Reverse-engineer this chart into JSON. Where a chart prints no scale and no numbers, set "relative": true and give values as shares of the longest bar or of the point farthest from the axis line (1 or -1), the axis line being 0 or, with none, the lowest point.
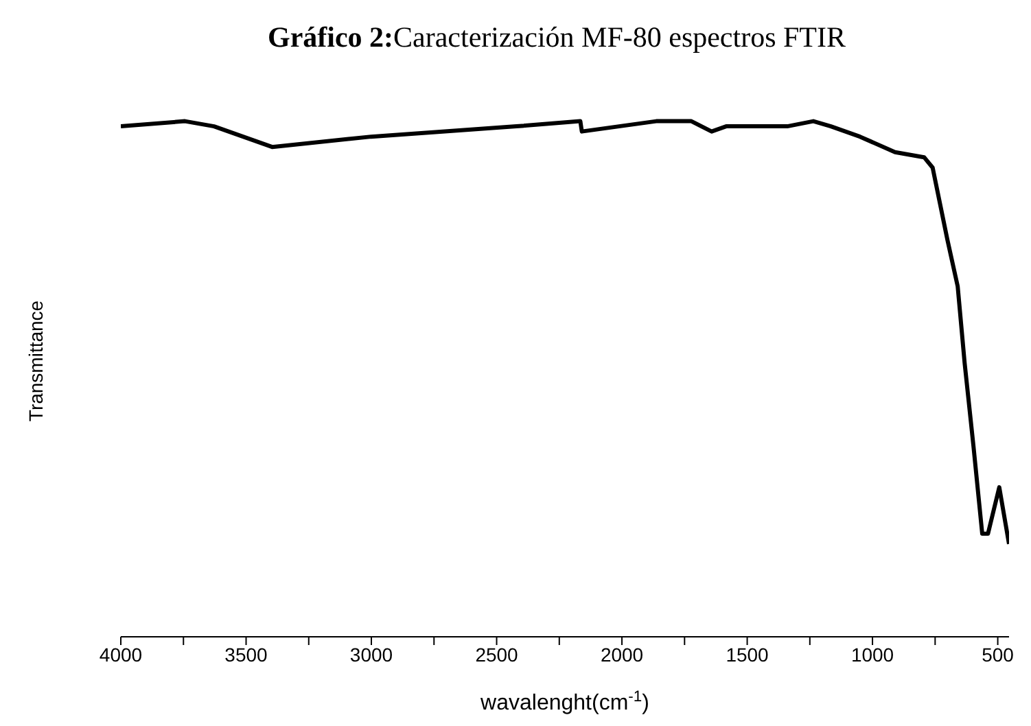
{
  "chart_data": {
    "type": "line",
    "title": "Gráfico 2:Caracterización MF-80 espectros FTIR",
    "xlabel": "wavalenght(cm$^{-1}$)",
    "ylabel": "Transmittance",
    "relative": true,
    "xlim": [
      4000,
      455
    ],
    "xticks": [
      4000,
      {
        "value": 3750,
        "label": null
      },
      3500,
      {
        "value": 3250,
        "label": null
      },
      3000,
      {
        "value": 2750,
        "label": null
      },
      2500,
      {
        "value": 2250,
        "label": null
      },
      2000,
      {
        "value": 1750,
        "label": null
      },
      1500,
      {
        "value": 1250,
        "label": null
      },
      1000,
      {
        "value": 750,
        "label": null
      },
      500
    ],
    "grid": false,
    "legend": false,
    "marker": "none",
    "line_style": "solid",
    "series": [
      {
        "color": "#000000",
        "x": [
          4000,
          3744,
          3628,
          3396,
          3001,
          2421,
          2166,
          2160,
          1863,
          1723,
          1642,
          1584,
          1340,
          1236,
          1166,
          1050,
          910,
          794,
          760,
          701,
          660,
          632,
          597,
          562,
          539,
          494,
          455
        ],
        "values": [
          0.99,
          1.0,
          0.99,
          0.95,
          0.97,
          0.99,
          1.0,
          0.98,
          1,
          1.0,
          0.98,
          0.99,
          0.99,
          1.0,
          0.99,
          0.97,
          0.94,
          0.93,
          0.91,
          0.77,
          0.68,
          0.53,
          0.37,
          0.2,
          0.2,
          0.29,
          0.18
        ]
      }
    ]
  }
}
